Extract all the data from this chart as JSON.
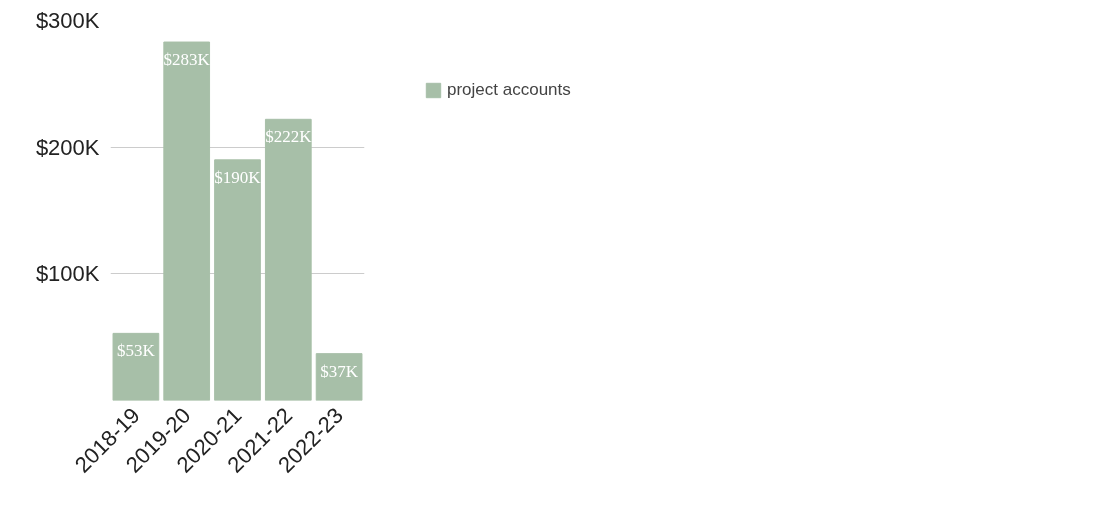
{
  "chart_data": {
    "type": "bar",
    "categories": [
      "2018-19",
      "2019-20",
      "2020-21",
      "2021-22",
      "2022-23"
    ],
    "series": [
      {
        "name": "project accounts",
        "color": "#a7bfa8",
        "values": [
          53000,
          283000,
          190000,
          222000,
          37000
        ],
        "value_labels": [
          "$53K",
          "$283K",
          "$190K",
          "$222K",
          "$37K"
        ]
      }
    ],
    "ylim": [
      0,
      300000
    ],
    "yticks": [
      {
        "value": 100000,
        "label": "$100K"
      },
      {
        "value": 200000,
        "label": "$200K"
      },
      {
        "value": 300000,
        "label": "$300K"
      }
    ],
    "grid": "y",
    "legend": "right"
  }
}
